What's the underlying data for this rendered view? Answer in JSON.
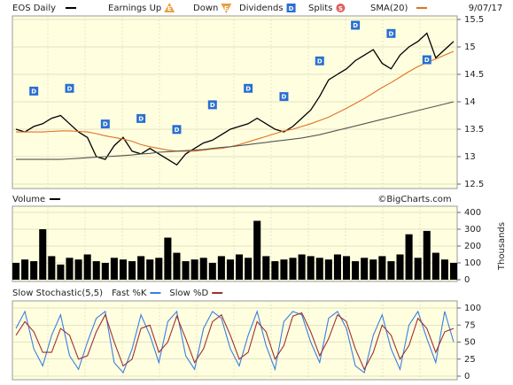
{
  "chart_data": [
    {
      "type": "line",
      "date": "9/07/17",
      "legend_markers": [
        {
          "label": "Earnings Up",
          "symbol": "E",
          "color": "#e8a040"
        },
        {
          "label": "Down",
          "symbol": "E",
          "color": "#e8a040"
        },
        {
          "label": "Dividends",
          "symbol": "D",
          "color": "#2a6fd0",
          "at": [
            2,
            6,
            10,
            14,
            18,
            22,
            26,
            30,
            34,
            38,
            42,
            46
          ]
        },
        {
          "label": "Splits",
          "symbol": "S",
          "color": "#e06060"
        }
      ],
      "series": [
        {
          "name": "EOS Daily",
          "color": "#000000",
          "values": [
            13.5,
            13.45,
            13.55,
            13.6,
            13.7,
            13.75,
            13.6,
            13.45,
            13.35,
            13.0,
            12.95,
            13.2,
            13.35,
            13.1,
            13.05,
            13.15,
            13.05,
            12.95,
            12.85,
            13.05,
            13.15,
            13.25,
            13.3,
            13.4,
            13.5,
            13.55,
            13.6,
            13.7,
            13.6,
            13.5,
            13.45,
            13.55,
            13.7,
            13.85,
            14.1,
            14.4,
            14.5,
            14.6,
            14.75,
            14.85,
            14.95,
            14.7,
            14.6,
            14.85,
            15.0,
            15.1,
            15.25,
            14.8,
            14.95,
            15.1
          ]
        },
        {
          "name": "SMA(20)",
          "color": "#e07020",
          "values": [
            13.45,
            13.45,
            13.45,
            13.45,
            13.46,
            13.47,
            13.47,
            13.46,
            13.45,
            13.42,
            13.38,
            13.35,
            13.32,
            13.28,
            13.22,
            13.18,
            13.15,
            13.12,
            13.1,
            13.1,
            13.1,
            13.12,
            13.14,
            13.15,
            13.18,
            13.22,
            13.27,
            13.32,
            13.37,
            13.42,
            13.47,
            13.5,
            13.55,
            13.6,
            13.66,
            13.72,
            13.8,
            13.88,
            13.97,
            14.06,
            14.16,
            14.26,
            14.35,
            14.45,
            14.55,
            14.64,
            14.72,
            14.78,
            14.85,
            14.92
          ]
        },
        {
          "color": "#555555",
          "values": [
            12.95,
            12.95,
            12.95,
            12.95,
            12.95,
            12.95,
            12.96,
            12.97,
            12.98,
            12.99,
            13.0,
            13.01,
            13.02,
            13.03,
            13.05,
            13.06,
            13.08,
            13.09,
            13.1,
            13.11,
            13.12,
            13.13,
            13.15,
            13.17,
            13.18,
            13.2,
            13.22,
            13.24,
            13.26,
            13.28,
            13.3,
            13.32,
            13.34,
            13.37,
            13.4,
            13.44,
            13.48,
            13.52,
            13.56,
            13.6,
            13.64,
            13.68,
            13.72,
            13.76,
            13.8,
            13.84,
            13.88,
            13.92,
            13.96,
            14.0
          ]
        }
      ],
      "ylim": [
        12.5,
        15.5
      ],
      "yticks": [
        12.5,
        13,
        13.5,
        14,
        14.5,
        15,
        15.5
      ],
      "grid": true
    },
    {
      "type": "bar",
      "series": [
        {
          "name": "Volume",
          "color": "#000000",
          "values": [
            100,
            120,
            110,
            300,
            140,
            90,
            130,
            120,
            150,
            110,
            100,
            130,
            120,
            110,
            140,
            120,
            130,
            250,
            160,
            110,
            120,
            130,
            100,
            140,
            120,
            150,
            130,
            350,
            140,
            110,
            120,
            130,
            150,
            140,
            130,
            120,
            150,
            140,
            110,
            130,
            120,
            140,
            110,
            150,
            270,
            130,
            290,
            160,
            120,
            100
          ]
        }
      ],
      "source": "©BigCharts.com",
      "y_label": "Thousands",
      "ylim": [
        0,
        400
      ],
      "yticks": [
        0,
        100,
        200,
        300,
        400
      ],
      "grid": true
    },
    {
      "type": "line",
      "title": "Slow Stochastic(5,5)",
      "series": [
        {
          "name": "Fast %K",
          "color": "#3a7ee0",
          "values": [
            70,
            95,
            40,
            15,
            60,
            90,
            30,
            10,
            50,
            85,
            95,
            20,
            5,
            40,
            90,
            60,
            20,
            80,
            95,
            30,
            10,
            70,
            95,
            85,
            40,
            15,
            60,
            95,
            45,
            10,
            80,
            95,
            90,
            50,
            20,
            85,
            95,
            70,
            15,
            5,
            60,
            90,
            40,
            10,
            75,
            95,
            55,
            20,
            95,
            50
          ]
        },
        {
          "name": "Slow %D",
          "color": "#a03030",
          "values": [
            60,
            80,
            65,
            35,
            35,
            70,
            60,
            25,
            30,
            65,
            90,
            50,
            15,
            25,
            70,
            75,
            35,
            50,
            88,
            55,
            20,
            40,
            80,
            90,
            60,
            25,
            35,
            80,
            65,
            25,
            45,
            88,
            93,
            65,
            30,
            55,
            90,
            80,
            40,
            10,
            35,
            75,
            60,
            25,
            45,
            85,
            70,
            35,
            65,
            70
          ]
        }
      ],
      "ylim": [
        0,
        100
      ],
      "yticks": [
        0,
        25,
        50,
        75,
        100
      ],
      "grid": true
    }
  ]
}
